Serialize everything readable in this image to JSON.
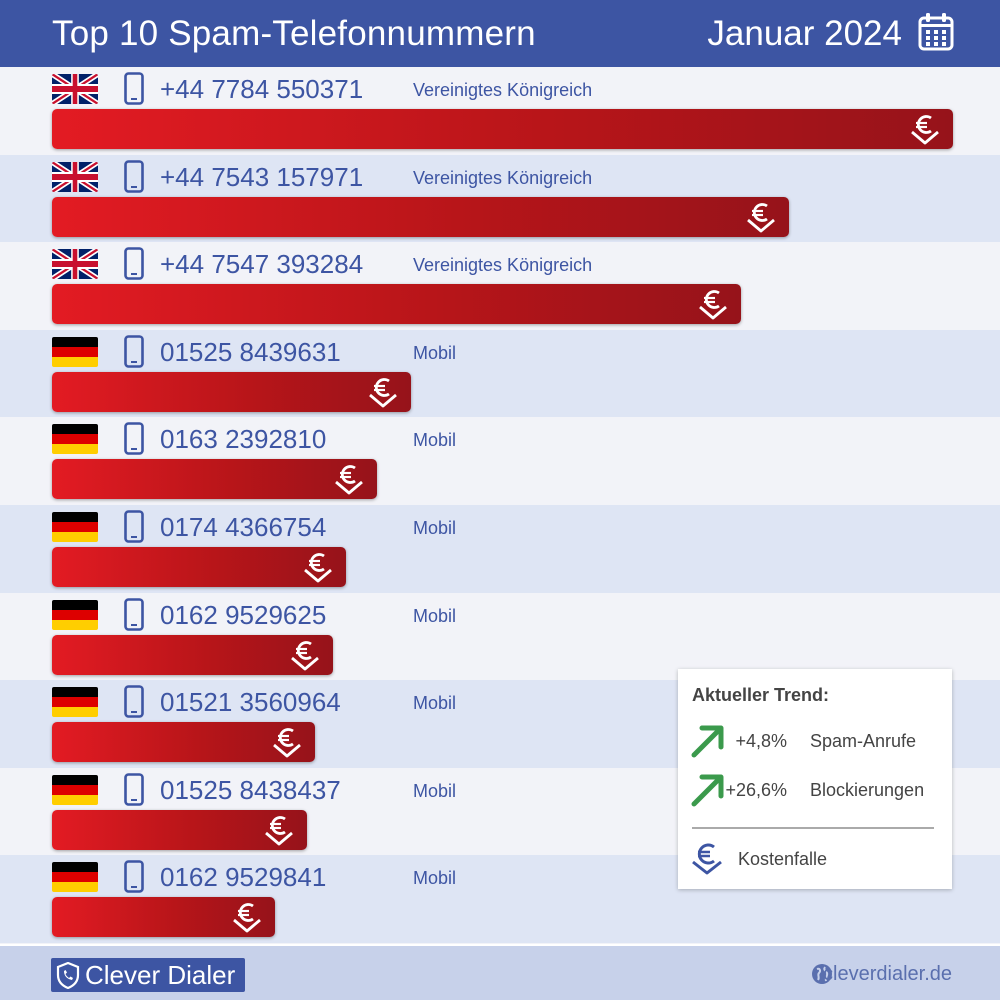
{
  "header": {
    "title": "Top 10 Spam-Telefonnummern",
    "period": "Januar 2024"
  },
  "chart_data": {
    "type": "bar",
    "title": "Top 10 Spam-Telefonnummern",
    "subtitle": "Januar 2024",
    "orientation": "horizontal",
    "categories": [
      "+44 7784 550371",
      "+44 7543 157971",
      "+44 7547 393284",
      "01525 8439631",
      "0163 2392810",
      "0174 4366754",
      "0162 9529625",
      "01521 3560964",
      "01525 8438437",
      "0162 9529841"
    ],
    "values": [
      100,
      81.8,
      76.5,
      39.9,
      36.1,
      32.6,
      31.2,
      29.2,
      28.3,
      24.8
    ],
    "xlabel": "",
    "ylabel": "",
    "grid": false,
    "rows": [
      {
        "number": "+44 7784 550371",
        "country": "Vereinigtes Königreich",
        "flag": "uk",
        "value": 100,
        "kostenfalle": true
      },
      {
        "number": "+44 7543 157971",
        "country": "Vereinigtes Königreich",
        "flag": "uk",
        "value": 81.8,
        "kostenfalle": true
      },
      {
        "number": "+44 7547 393284",
        "country": "Vereinigtes Königreich",
        "flag": "uk",
        "value": 76.5,
        "kostenfalle": true
      },
      {
        "number": "01525 8439631",
        "country": "Mobil",
        "flag": "de",
        "value": 39.9,
        "kostenfalle": true
      },
      {
        "number": "0163 2392810",
        "country": "Mobil",
        "flag": "de",
        "value": 36.1,
        "kostenfalle": true
      },
      {
        "number": "0174 4366754",
        "country": "Mobil",
        "flag": "de",
        "value": 32.6,
        "kostenfalle": true
      },
      {
        "number": "0162 9529625",
        "country": "Mobil",
        "flag": "de",
        "value": 31.2,
        "kostenfalle": true
      },
      {
        "number": "01521 3560964",
        "country": "Mobil",
        "flag": "de",
        "value": 29.2,
        "kostenfalle": true
      },
      {
        "number": "01525 8438437",
        "country": "Mobil",
        "flag": "de",
        "value": 28.3,
        "kostenfalle": true
      },
      {
        "number": "0162 9529841",
        "country": "Mobil",
        "flag": "de",
        "value": 24.8,
        "kostenfalle": true
      }
    ]
  },
  "legend": {
    "title": "Aktueller Trend:",
    "trends": [
      {
        "value": "+4,8%",
        "label": "Spam-Anrufe"
      },
      {
        "value": "+26,6%",
        "label": "Blockierungen"
      }
    ],
    "kostenfalle_label": "Kostenfalle"
  },
  "footer": {
    "brand": "Clever Dialer",
    "website": "cleverdialer.de"
  },
  "colors": {
    "header": "#3d55a3",
    "bar_start": "#e31b23",
    "bar_end": "#96131a",
    "row_alt": "#dee5f4",
    "trend_green": "#3b9a4c"
  }
}
